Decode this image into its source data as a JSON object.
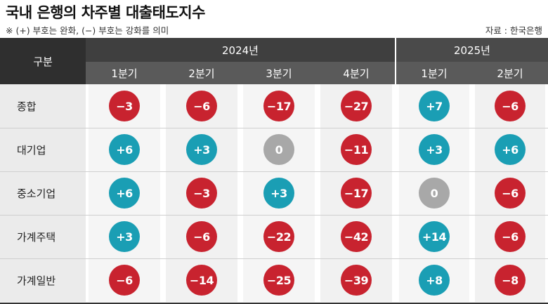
{
  "title": "국내 은행의 차주별 대출태도지수",
  "note": "※ (+) 부호는 완화, (−) 부호는 강화를 의미",
  "source": "자료 : 한국은행",
  "header": {
    "category_label": "구분",
    "years": [
      {
        "label": "2024년",
        "quarters": [
          "1분기",
          "2분기",
          "3분기",
          "4분기"
        ]
      },
      {
        "label": "2025년",
        "quarters": [
          "1분기",
          "2분기"
        ]
      }
    ]
  },
  "colors": {
    "negative": "#c8232f",
    "positive": "#1a9eb4",
    "zero": "#a8a8a8"
  },
  "rows": [
    {
      "label": "종합",
      "values": [
        "−3",
        "−6",
        "−17",
        "−27",
        "+7",
        "−6"
      ]
    },
    {
      "label": "대기업",
      "values": [
        "+6",
        "+3",
        "0",
        "−11",
        "+3",
        "+6"
      ]
    },
    {
      "label": "중소기업",
      "values": [
        "+6",
        "−3",
        "+3",
        "−17",
        "0",
        "−6"
      ]
    },
    {
      "label": "가계주택",
      "values": [
        "+3",
        "−6",
        "−22",
        "−42",
        "+14",
        "−6"
      ]
    },
    {
      "label": "가계일반",
      "values": [
        "−6",
        "−14",
        "−25",
        "−39",
        "+8",
        "−8"
      ]
    }
  ]
}
